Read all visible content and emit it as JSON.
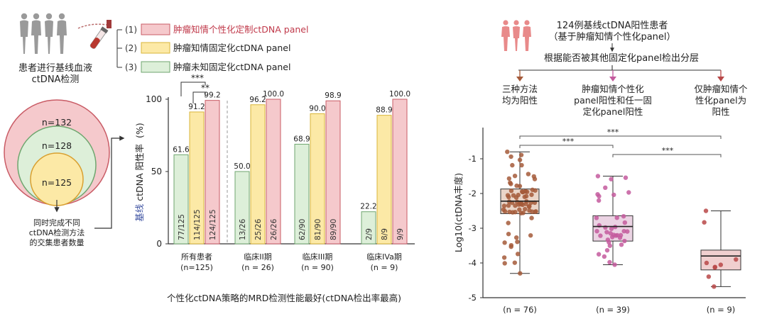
{
  "left": {
    "cohort_label_line1": "患者进行基线血液",
    "cohort_label_line2": "ctDNA检测",
    "panels": [
      {
        "num": "(1)",
        "label": "肿瘤知情个性化定制ctDNA panel"
      },
      {
        "num": "(2)",
        "label": "肿瘤知情固定化ctDNA panel"
      },
      {
        "num": "(3)",
        "label": "肿瘤未知固定化ctDNA panel"
      }
    ],
    "venn": {
      "outer": "n=132",
      "middle": "n=128",
      "inner": "n=125",
      "note_line1": "同时完成不同",
      "note_line2": "ctDNA检测方法",
      "note_line3": "的交集患者数量"
    }
  },
  "colors": {
    "personalized_fill": "#F5C9CC",
    "personalized_stroke": "#C95C66",
    "fixed_informed_fill": "#FCE9A6",
    "fixed_informed_stroke": "#D9B53A",
    "agnostic_fill": "#DDEFD9",
    "agnostic_stroke": "#6FA66F",
    "box_brown": "#A55A3A",
    "box_pink": "#C45A9E",
    "box_red": "#B84848",
    "axis_blue": "#3A4FA0"
  },
  "chart_data": [
    {
      "type": "bar",
      "ylabel_prefix": "基线",
      "ylabel_main": " ctDNA 阳性率",
      "ylabel_unit": "(%)",
      "xlabel": "个性化ctDNA策略的MRD检测性能最好(ctDNA检出率最高)",
      "ylim": [
        0,
        100
      ],
      "yticks": [
        "0",
        "50",
        "100"
      ],
      "groups": [
        {
          "label": "所有患者",
          "sublabel": "(n=125)"
        },
        {
          "label": "临床II期",
          "sublabel": "(n = 26)"
        },
        {
          "label": "临床III期",
          "sublabel": "(n = 90)"
        },
        {
          "label": "临床IVa期",
          "sublabel": "(n = 9)"
        }
      ],
      "series": [
        {
          "values": [
            61.6,
            50.0,
            68.9,
            22.2
          ],
          "value_labels": [
            "61.6",
            "50.0",
            "68.9",
            "22.2"
          ],
          "fractions": [
            "77/125",
            "13/26",
            "62/90",
            "2/9"
          ]
        },
        {
          "values": [
            91.2,
            96.2,
            90.0,
            88.9
          ],
          "value_labels": [
            "91.2",
            "96.2",
            "90.0",
            "88.9"
          ],
          "fractions": [
            "114/125",
            "25/26",
            "81/90",
            "8/9"
          ]
        },
        {
          "values": [
            99.2,
            100.0,
            98.9,
            100.0
          ],
          "value_labels": [
            "99.2",
            "100.0",
            "98.9",
            "100.0"
          ],
          "fractions": [
            "124/125",
            "26/26",
            "89/90",
            "9/9"
          ]
        }
      ],
      "significance": [
        "***",
        "**"
      ]
    },
    {
      "type": "box",
      "header_line1": "124例基线ctDNA阳性患者",
      "header_line2": "（基于肿瘤知情个性化panel）",
      "stratify_label": "根据能否被其他固定化panel检出分层",
      "group_titles": [
        [
          "三种方法",
          "均为阳性"
        ],
        [
          "肿瘤知情个性化",
          "panel阳性和任一固",
          "定化panel阳性"
        ],
        [
          "仅肿瘤知情个",
          "性化panel为",
          "阳性"
        ]
      ],
      "ylabel": "Log10(ctDNA丰度)",
      "ylim": [
        -5,
        -0.8
      ],
      "yticks": [
        "-1",
        "-2",
        "-3",
        "-4",
        "-5"
      ],
      "categories": [
        "(n = 76)",
        "(n = 39)",
        "(n = 9)"
      ],
      "boxes": [
        {
          "min": -4.3,
          "q1": -2.58,
          "median": -2.22,
          "q3": -1.87,
          "max": -0.8
        },
        {
          "min": -4.05,
          "q1": -3.37,
          "median": -2.95,
          "q3": -2.64,
          "max": -1.5
        },
        {
          "min": -4.68,
          "q1": -4.2,
          "median": -3.8,
          "q3": -3.63,
          "max": -2.5
        }
      ],
      "significance": [
        "***",
        "***",
        "***"
      ]
    }
  ]
}
